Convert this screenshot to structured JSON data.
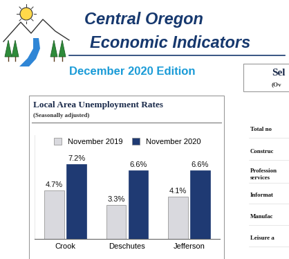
{
  "header": {
    "title_lines": [
      "Central Oregon",
      "Economic Indicators"
    ],
    "edition": "December 2020 Edition"
  },
  "chart_data": {
    "type": "bar",
    "title": "Local Area Unemployment Rates",
    "subtitle": "(Seasonally adjusted)",
    "categories": [
      "Crook",
      "Deschutes",
      "Jefferson"
    ],
    "series": [
      {
        "name": "November 2019",
        "color": "#d9d9de",
        "values": [
          4.7,
          3.3,
          4.1
        ],
        "value_labels": [
          "4.7%",
          "3.3%",
          "4.1%"
        ]
      },
      {
        "name": "November 2020",
        "color": "#1f3a73",
        "values": [
          7.2,
          6.6,
          6.6
        ],
        "value_labels": [
          "7.2%",
          "6.6%",
          "6.6%"
        ]
      }
    ],
    "ylim": [
      0,
      10
    ],
    "data_labels": true,
    "tick_labels": "x",
    "legend": "upper center"
  },
  "side_panel": {
    "heading": "Sel",
    "subheading": "(Ov",
    "rows": [
      "Total no",
      "Construc",
      "Profession\nservices",
      "Informat",
      "Manufac",
      "Leisure a"
    ]
  }
}
